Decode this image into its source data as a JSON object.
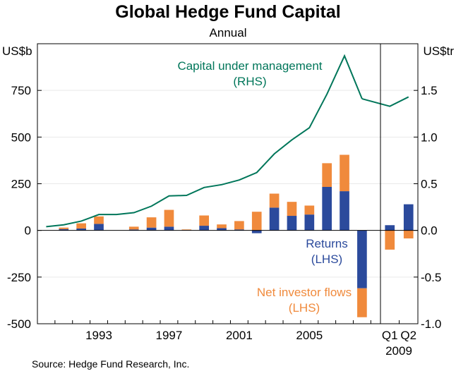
{
  "chart_data": {
    "type": "bar",
    "title": "Global Hedge Fund Capital",
    "subtitle": "Annual",
    "source": "Source: Hedge Fund Research, Inc.",
    "left_axis": {
      "unit": "US$b",
      "min": -500,
      "max": 1000,
      "ticks": [
        -500,
        -250,
        0,
        250,
        500,
        750
      ]
    },
    "right_axis": {
      "unit": "US$tr",
      "min": -1.0,
      "max": 2.0,
      "ticks": [
        -1.0,
        -0.5,
        0.0,
        0.5,
        1.0,
        1.5
      ]
    },
    "x_year_ticks": [
      1993,
      1997,
      2001,
      2005
    ],
    "x_quarter_labels": [
      "Q1",
      "Q2"
    ],
    "x_quarter_year": "2009",
    "annual_years": [
      1990,
      1991,
      1992,
      1993,
      1994,
      1995,
      1996,
      1997,
      1998,
      1999,
      2000,
      2001,
      2002,
      2003,
      2004,
      2005,
      2006,
      2007,
      2008
    ],
    "quarters": [
      "Q1 2009",
      "Q2 2009"
    ],
    "series": [
      {
        "name": "Returns",
        "axis": "left",
        "label": "Returns",
        "label_sub": "(LHS)",
        "color": "#2B4A9C",
        "annual": [
          0,
          7,
          10,
          35,
          0,
          5,
          15,
          20,
          2,
          25,
          12,
          5,
          -15,
          122,
          78,
          85,
          233,
          210,
          -310
        ],
        "quarterly": [
          28,
          140
        ]
      },
      {
        "name": "Net investor flows",
        "axis": "left",
        "label": "Net investor flows",
        "label_sub": "(LHS)",
        "color": "#F08A3C",
        "annual": [
          0,
          8,
          28,
          40,
          0,
          15,
          55,
          90,
          3,
          55,
          20,
          45,
          100,
          75,
          75,
          48,
          127,
          195,
          -155
        ],
        "quarterly": [
          -103,
          -43
        ]
      },
      {
        "name": "Capital under management",
        "axis": "right",
        "label": "Capital under management",
        "label_sub": "(RHS)",
        "color": "#00765A",
        "annual": [
          0.04,
          0.06,
          0.1,
          0.17,
          0.17,
          0.19,
          0.26,
          0.37,
          0.375,
          0.46,
          0.49,
          0.54,
          0.62,
          0.82,
          0.97,
          1.1,
          1.46,
          1.87,
          1.41
        ],
        "quarterly": [
          1.33,
          1.43
        ]
      }
    ]
  }
}
